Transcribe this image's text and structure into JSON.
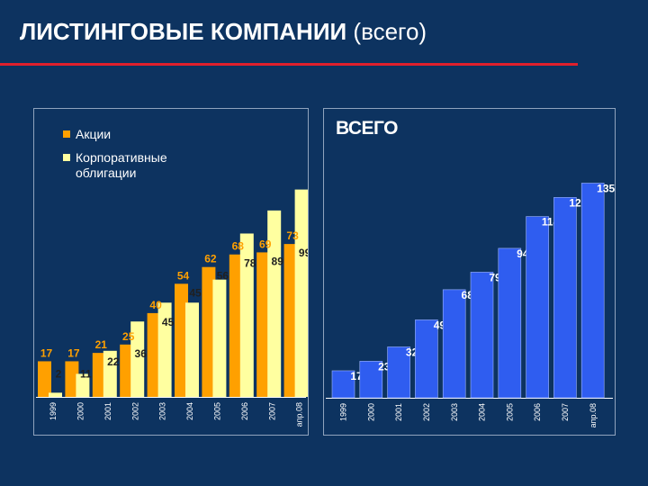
{
  "header": {
    "title": "ЛИСТИНГОВЫЕ КОМПАНИИ",
    "subtitle": "(всего)"
  },
  "colors": {
    "background": "#0d3360",
    "accent_rule": "#e0202c",
    "shares": "#ffa000",
    "bonds": "#ffffa0",
    "total": "#2f5df0",
    "label_orange": "#ffa000",
    "label_dark": "#202020"
  },
  "chart_data": [
    {
      "type": "bar",
      "title": "",
      "categories": [
        "1999",
        "2000",
        "2001",
        "2002",
        "2003",
        "2004",
        "2005",
        "2006",
        "2007",
        "апр.08"
      ],
      "series": [
        {
          "name": "Акции",
          "values": [
            17,
            17,
            21,
            25,
            40,
            54,
            62,
            68,
            69,
            73
          ]
        },
        {
          "name": "Корпоративные облигации",
          "values": [
            2,
            11,
            22,
            36,
            45,
            45,
            56,
            78,
            89,
            99
          ]
        }
      ],
      "ylim": [
        0,
        110
      ],
      "legend": "top-left",
      "grid": false
    },
    {
      "type": "bar",
      "title": "ВСЕГО",
      "categories": [
        "1999",
        "2000",
        "2001",
        "2002",
        "2003",
        "2004",
        "2005",
        "2006",
        "2007",
        "апр.08"
      ],
      "series": [
        {
          "name": "",
          "values": [
            17,
            23,
            32,
            49,
            68,
            79,
            94,
            114,
            126,
            135
          ]
        }
      ],
      "ylim": [
        0,
        150
      ],
      "grid": false
    }
  ]
}
